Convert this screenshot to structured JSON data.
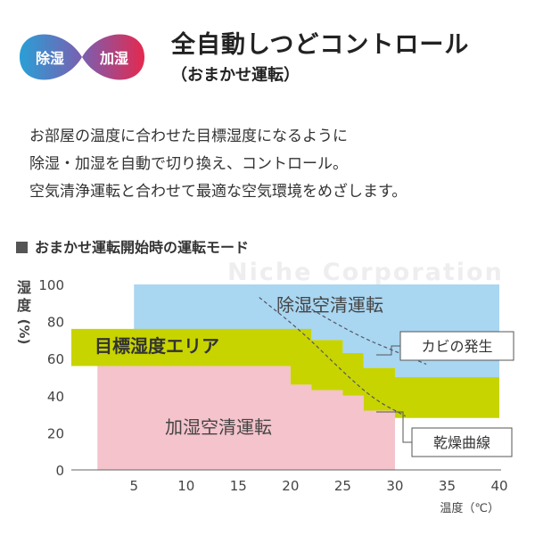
{
  "logo": {
    "left_label": "除湿",
    "right_label": "加湿",
    "colors": {
      "left": "#2a9fd6",
      "right": "#e4294f",
      "inner": "#ffffff"
    }
  },
  "header": {
    "title": "全自動しつどコントロール",
    "subtitle": "（おまかせ運転）"
  },
  "description": [
    "お部屋の温度に合わせた目標湿度になるように",
    "除湿・加湿を自動で切り換え、コントロール。",
    "空気清浄運転と合わせて最適な空気環境をめざします。"
  ],
  "section_title": "おまかせ運転開始時の運転モード",
  "watermark": "Niche Corporation",
  "chart_data": {
    "type": "area",
    "xlabel": "温度（℃）",
    "ylabel": "湿度（%）",
    "xlim": [
      -1,
      40
    ],
    "ylim": [
      0,
      100
    ],
    "x_ticks": [
      5,
      10,
      15,
      20,
      25,
      30,
      35,
      40
    ],
    "y_ticks": [
      0,
      20,
      40,
      60,
      80,
      100
    ],
    "regions": [
      {
        "name": "除湿空清運転",
        "color": "#a9d6f1",
        "upper": [
          [
            5,
            100
          ],
          [
            40,
            100
          ]
        ],
        "lower": [
          [
            5,
            75
          ],
          [
            20,
            75
          ],
          [
            22,
            70
          ],
          [
            25,
            63
          ],
          [
            27,
            55
          ],
          [
            30,
            50
          ],
          [
            40,
            46
          ]
        ]
      },
      {
        "name": "目標湿度エリア",
        "color": "#c7d400",
        "upper": [
          [
            -1,
            76
          ],
          [
            20,
            76
          ],
          [
            22,
            70
          ],
          [
            25,
            63
          ],
          [
            27,
            55
          ],
          [
            30,
            50
          ],
          [
            40,
            46
          ]
        ],
        "lower": [
          [
            -1,
            56
          ],
          [
            20,
            56
          ],
          [
            20,
            46
          ],
          [
            22,
            43
          ],
          [
            25,
            40
          ],
          [
            27,
            32
          ],
          [
            30,
            28
          ],
          [
            40,
            28
          ]
        ]
      },
      {
        "name": "加湿空清運転",
        "color": "#f4c3cc",
        "upper": [
          [
            1.5,
            56
          ],
          [
            20,
            56
          ],
          [
            20,
            46
          ],
          [
            22,
            43
          ],
          [
            25,
            40
          ],
          [
            27,
            32
          ],
          [
            30,
            28
          ]
        ],
        "lower": [
          [
            1.5,
            0
          ],
          [
            30,
            0
          ]
        ]
      }
    ],
    "curves": [
      {
        "name": "カビの発生",
        "points": [
          [
            21,
            90
          ],
          [
            24,
            80
          ],
          [
            27,
            71
          ],
          [
            30,
            64
          ],
          [
            33,
            57
          ]
        ]
      },
      {
        "name": "乾燥曲線",
        "points": [
          [
            17,
            93
          ],
          [
            21,
            75
          ],
          [
            25,
            53
          ],
          [
            28,
            38
          ],
          [
            31,
            29
          ]
        ]
      }
    ]
  }
}
